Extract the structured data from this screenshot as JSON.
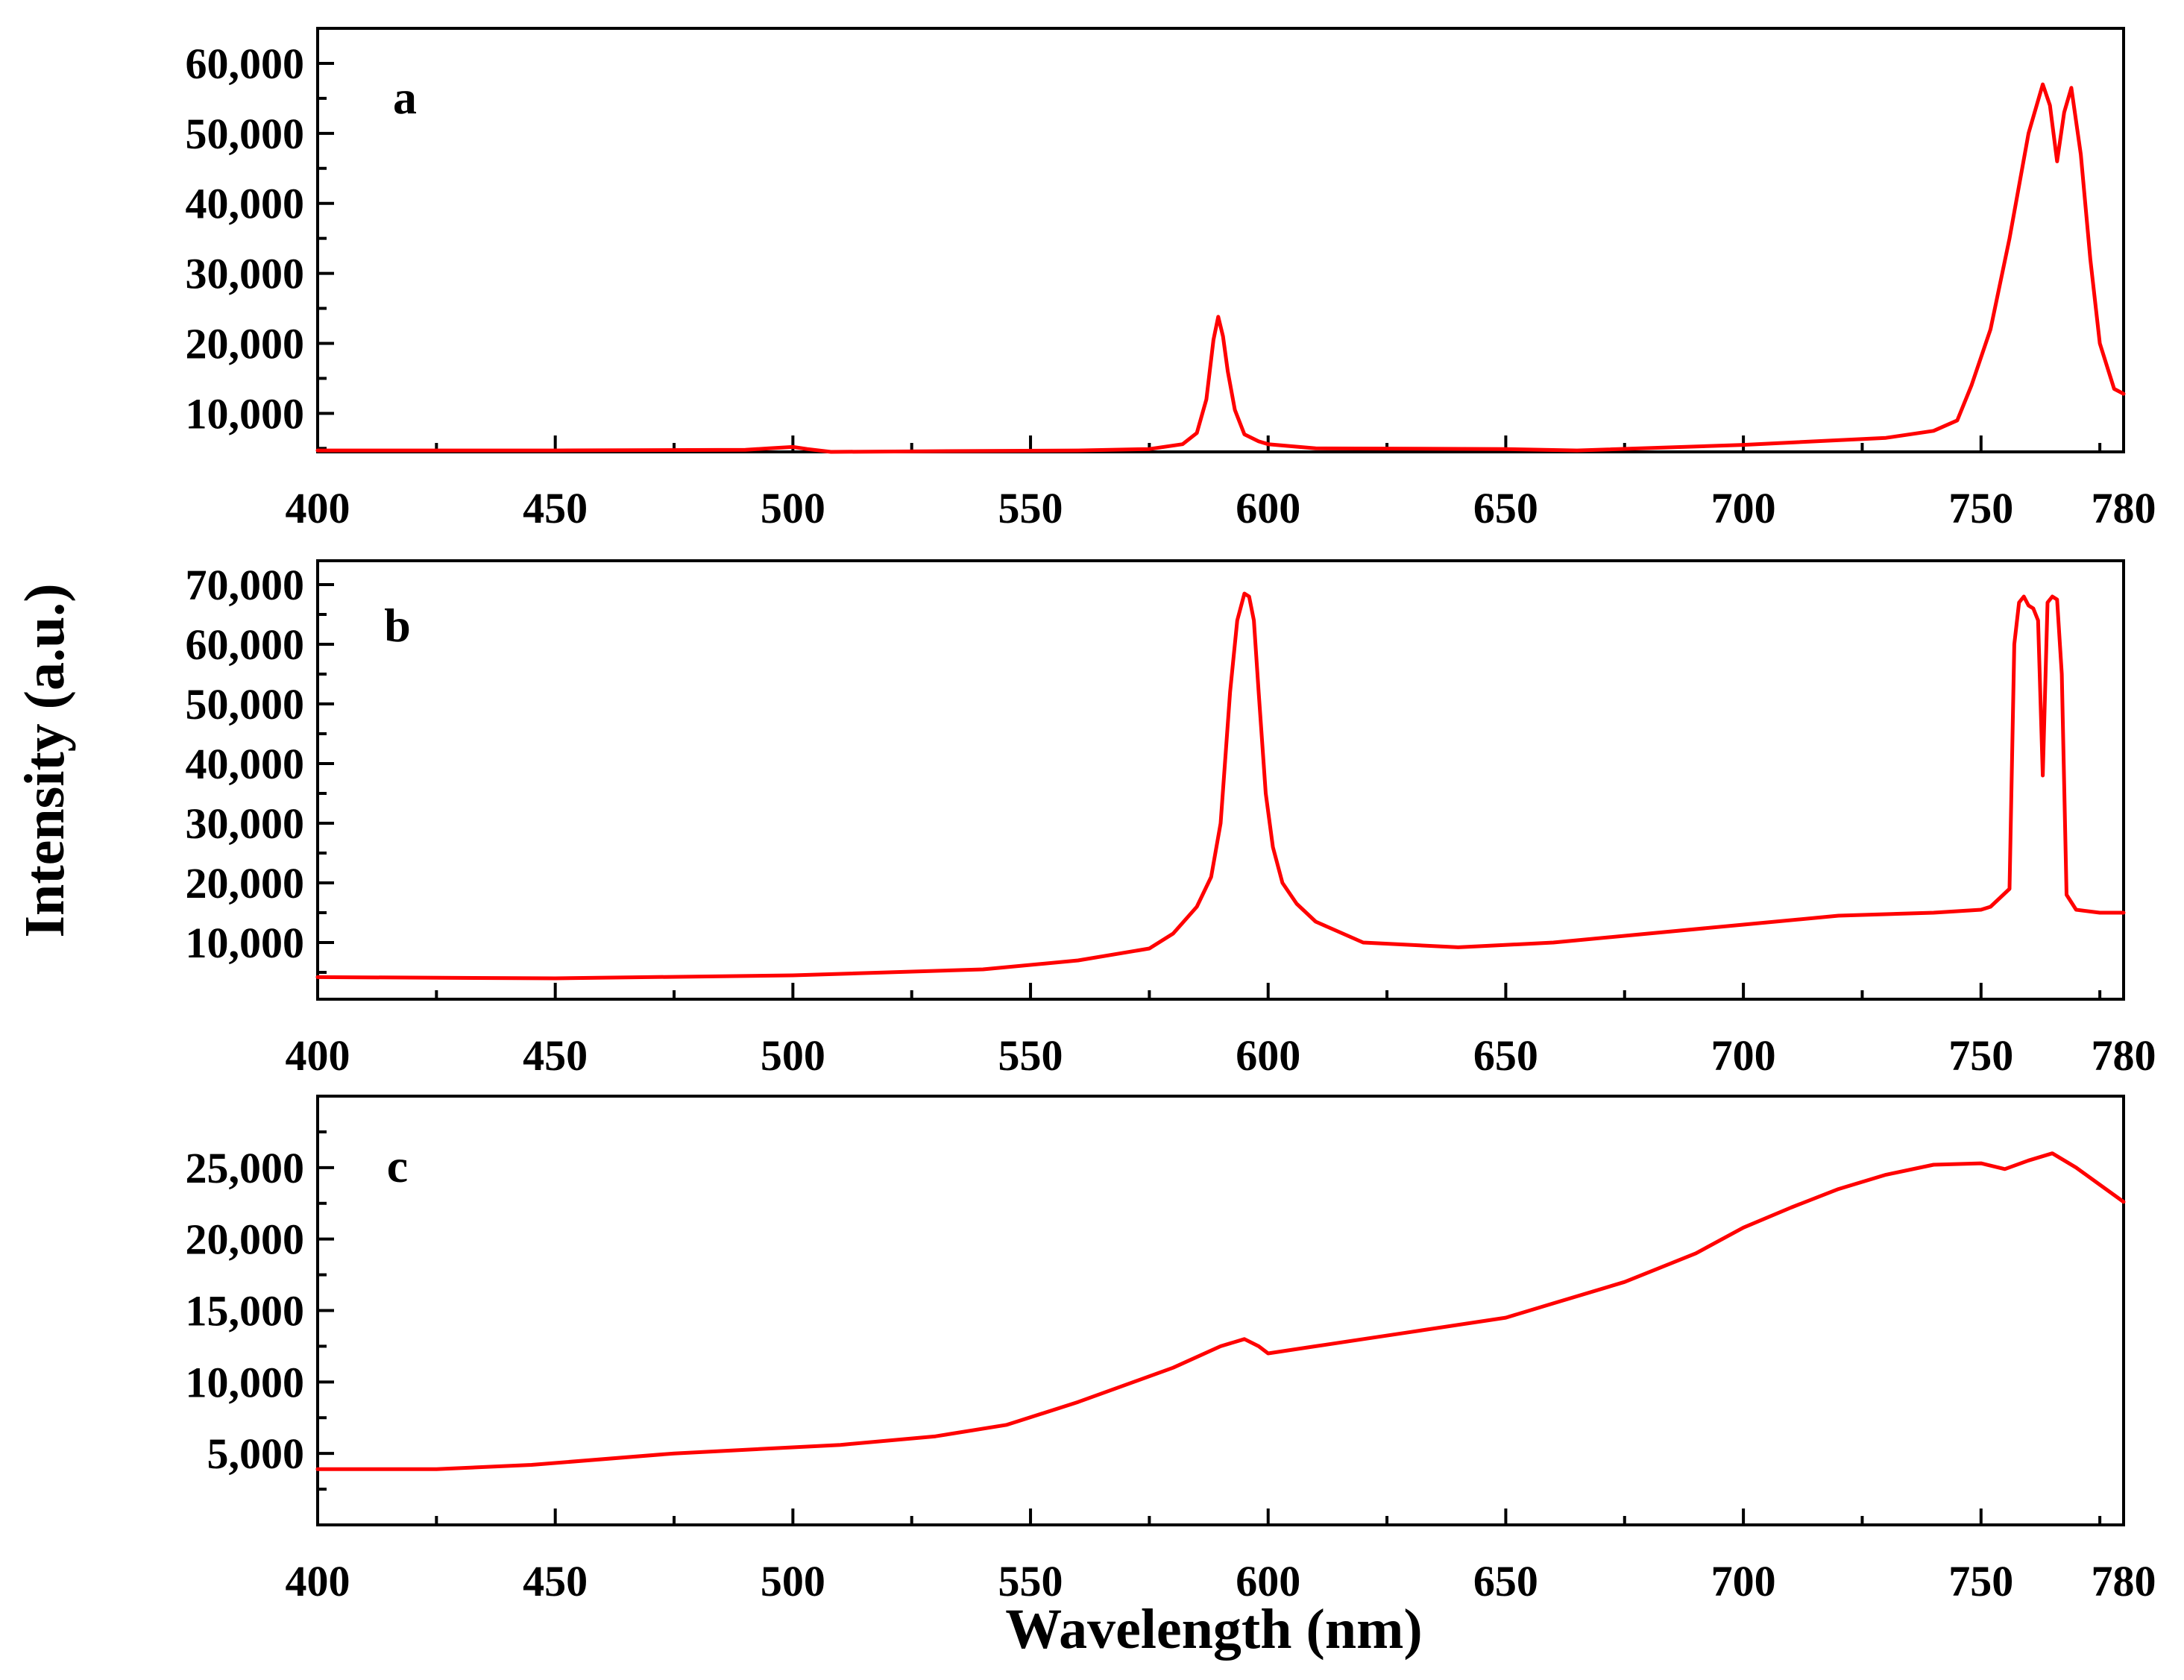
{
  "figure": {
    "xlabel": "Wavelength (nm)",
    "ylabel": "Intensity (a.u.)"
  },
  "colors": {
    "series": "#ff0000",
    "axes": "#000000"
  },
  "chart_data": [
    {
      "type": "line",
      "panel": "a",
      "xlabel": "Wavelength (nm)",
      "ylabel": "Intensity (a.u.)",
      "xlim": [
        400,
        780
      ],
      "ylim": [
        4500,
        65000
      ],
      "xticks": [
        400,
        450,
        500,
        550,
        600,
        650,
        700,
        750,
        780
      ],
      "xtick_labels": [
        "400",
        "450",
        "500",
        "550",
        "600",
        "650",
        "700",
        "750",
        "780"
      ],
      "yticks": [
        10000,
        20000,
        30000,
        40000,
        50000,
        60000
      ],
      "ytick_labels": [
        "10,000",
        "20,000",
        "30,000",
        "40,000",
        "50,000",
        "60,000"
      ],
      "series": [
        {
          "name": "a",
          "x": [
            400,
            450,
            490,
            495,
            500,
            503,
            508,
            530,
            560,
            575,
            582,
            585,
            587,
            588.5,
            589.5,
            590.5,
            591.5,
            593,
            595,
            598,
            600,
            610,
            650,
            665,
            700,
            730,
            740,
            745,
            748,
            752,
            756,
            760,
            763,
            764.5,
            766,
            767.5,
            769,
            771,
            773,
            775,
            778,
            780
          ],
          "y": [
            4700,
            4700,
            4800,
            5000,
            5200,
            4900,
            4500,
            4600,
            4700,
            4900,
            5600,
            7200,
            12000,
            20500,
            23800,
            21000,
            16000,
            10500,
            7000,
            6000,
            5600,
            5000,
            4900,
            4700,
            5500,
            6500,
            7500,
            9000,
            14000,
            22000,
            35000,
            50000,
            57000,
            54000,
            46000,
            53000,
            56500,
            47000,
            32000,
            20000,
            13500,
            12800
          ]
        }
      ]
    },
    {
      "type": "line",
      "panel": "b",
      "xlabel": "Wavelength (nm)",
      "ylabel": "Intensity (a.u.)",
      "xlim": [
        400,
        780
      ],
      "ylim": [
        500,
        74000
      ],
      "xticks": [
        400,
        450,
        500,
        550,
        600,
        650,
        700,
        750,
        780
      ],
      "xtick_labels": [
        "400",
        "450",
        "500",
        "550",
        "600",
        "650",
        "700",
        "750",
        "780"
      ],
      "yticks": [
        10000,
        20000,
        30000,
        40000,
        50000,
        60000,
        70000
      ],
      "ytick_labels": [
        "10,000",
        "20,000",
        "30,000",
        "40,000",
        "50,000",
        "60,000",
        "70,000"
      ],
      "series": [
        {
          "name": "b",
          "x": [
            400,
            450,
            500,
            540,
            560,
            575,
            580,
            585,
            588,
            590,
            592,
            593.5,
            595,
            596,
            597,
            598,
            599.5,
            601,
            603,
            606,
            610,
            620,
            640,
            660,
            680,
            700,
            720,
            740,
            750,
            752,
            754,
            756,
            757,
            758,
            759,
            760,
            761,
            762,
            763,
            764,
            765,
            766,
            767,
            768,
            770,
            775,
            780
          ],
          "y": [
            4200,
            4000,
            4500,
            5500,
            7000,
            9000,
            11500,
            16000,
            21000,
            30000,
            52000,
            64000,
            68500,
            68000,
            64000,
            52000,
            35000,
            26000,
            20000,
            16500,
            13500,
            10000,
            9200,
            10000,
            11500,
            13000,
            14500,
            15000,
            15500,
            16000,
            17500,
            19000,
            60000,
            67000,
            68000,
            66500,
            66000,
            64000,
            38000,
            67000,
            68000,
            67500,
            55000,
            18000,
            15500,
            15000,
            15000
          ]
        }
      ]
    },
    {
      "type": "line",
      "panel": "c",
      "xlabel": "Wavelength (nm)",
      "ylabel": "Intensity (a.u.)",
      "xlim": [
        400,
        780
      ],
      "ylim": [
        0,
        30000
      ],
      "xticks": [
        400,
        450,
        500,
        550,
        600,
        650,
        700,
        750,
        780
      ],
      "xtick_labels": [
        "400",
        "450",
        "500",
        "550",
        "600",
        "650",
        "700",
        "750",
        "780"
      ],
      "yticks": [
        5000,
        10000,
        15000,
        20000,
        25000
      ],
      "ytick_labels": [
        "5,000",
        "10,000",
        "15,000",
        "20,000",
        "25,000"
      ],
      "series": [
        {
          "name": "c",
          "x": [
            400,
            425,
            445,
            475,
            510,
            530,
            545,
            560,
            580,
            590,
            595,
            598,
            600,
            610,
            630,
            650,
            660,
            675,
            690,
            700,
            710,
            720,
            730,
            740,
            750,
            755,
            760,
            765,
            770,
            775,
            780
          ],
          "y": [
            3900,
            3900,
            4200,
            5000,
            5600,
            6200,
            7000,
            8600,
            11000,
            12500,
            13000,
            12500,
            12000,
            12500,
            13500,
            14500,
            15500,
            17000,
            19000,
            20800,
            22200,
            23500,
            24500,
            25200,
            25300,
            24900,
            25500,
            26000,
            25000,
            23800,
            22600
          ]
        }
      ]
    }
  ]
}
